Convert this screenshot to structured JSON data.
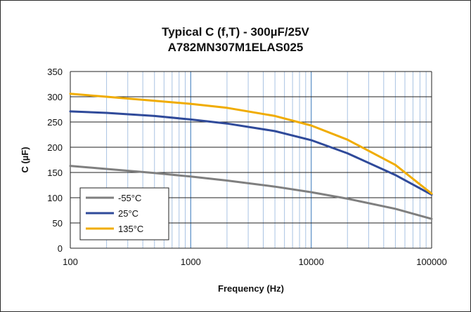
{
  "chart_data": {
    "type": "line",
    "title": "Typical C (f,T) - 300µF/25V",
    "subtitle": "A782MN307M1ELAS025",
    "xlabel": "Frequency (Hz)",
    "ylabel": "C (µF)",
    "xscale": "log",
    "xlim": [
      100,
      100000
    ],
    "ylim": [
      0,
      350
    ],
    "xticks": [
      "100",
      "1000",
      "10000",
      "100000"
    ],
    "yticks": [
      "0",
      "50",
      "100",
      "150",
      "200",
      "250",
      "300",
      "350"
    ],
    "grid": true,
    "legend_position": "bottom-left",
    "series": [
      {
        "name": "-55°C",
        "color": "#7f7f7f",
        "x": [
          100,
          200,
          500,
          1000,
          2000,
          5000,
          10000,
          20000,
          50000,
          100000
        ],
        "y": [
          163,
          157,
          149,
          142,
          134,
          122,
          111,
          98,
          78,
          58
        ]
      },
      {
        "name": "25°C",
        "color": "#2f4a9a",
        "x": [
          100,
          200,
          500,
          1000,
          2000,
          5000,
          10000,
          20000,
          50000,
          100000
        ],
        "y": [
          271,
          268,
          262,
          255,
          247,
          232,
          214,
          188,
          145,
          106
        ]
      },
      {
        "name": "135°C",
        "color": "#f0ac00",
        "x": [
          100,
          200,
          500,
          1000,
          2000,
          5000,
          10000,
          20000,
          50000,
          100000
        ],
        "y": [
          306,
          300,
          292,
          286,
          278,
          262,
          243,
          215,
          165,
          108
        ]
      }
    ]
  }
}
